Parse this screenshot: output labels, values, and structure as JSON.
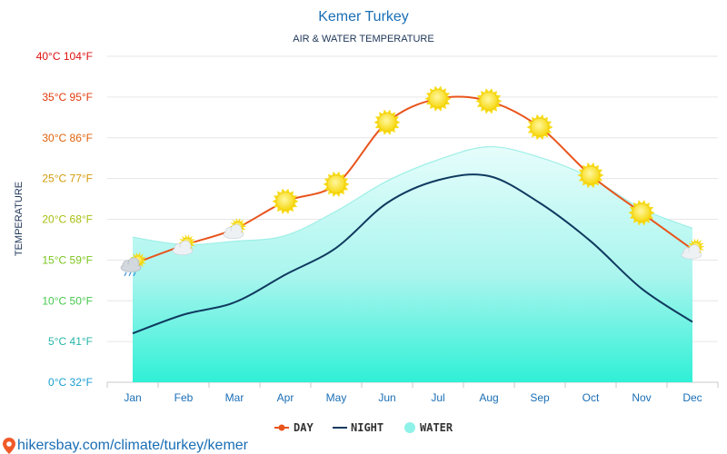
{
  "chart_data": {
    "type": "line",
    "title": "Kemer Turkey",
    "subtitle": "AIR & WATER TEMPERATURE",
    "ylabel": "TEMPERATURE",
    "xlabel": "",
    "categories": [
      "Jan",
      "Feb",
      "Mar",
      "Apr",
      "May",
      "Jun",
      "Jul",
      "Aug",
      "Sep",
      "Oct",
      "Nov",
      "Dec"
    ],
    "yticks": [
      {
        "c": 0,
        "label": "0°C 32°F",
        "color": "#1a9fd0"
      },
      {
        "c": 5,
        "label": "5°C 41°F",
        "color": "#25b6a8"
      },
      {
        "c": 10,
        "label": "10°C 50°F",
        "color": "#46c84c"
      },
      {
        "c": 15,
        "label": "15°C 59°F",
        "color": "#7cc51f"
      },
      {
        "c": 20,
        "label": "20°C 68°F",
        "color": "#a6bf10"
      },
      {
        "c": 25,
        "label": "25°C 77°F",
        "color": "#d39b0a"
      },
      {
        "c": 30,
        "label": "30°C 86°F",
        "color": "#e0620a"
      },
      {
        "c": 35,
        "label": "35°C 95°F",
        "color": "#e03a0a"
      },
      {
        "c": 40,
        "label": "40°C 104°F",
        "color": "#dd1010"
      }
    ],
    "ylim": [
      0,
      40
    ],
    "grid": true,
    "legend_position": "bottom",
    "series": [
      {
        "name": "DAY",
        "values": [
          14.5,
          16.8,
          18.8,
          22.2,
          24.3,
          31.9,
          34.8,
          34.5,
          31.3,
          25.4,
          20.8,
          16.3
        ],
        "color": "#e8541c"
      },
      {
        "name": "NIGHT",
        "values": [
          6.0,
          8.3,
          9.8,
          13.2,
          16.5,
          22.0,
          24.8,
          25.3,
          22.0,
          17.3,
          11.5,
          7.4
        ],
        "color": "#0f3a5f"
      },
      {
        "name": "WATER",
        "values": [
          17.8,
          16.9,
          17.3,
          18.0,
          21.0,
          24.7,
          27.3,
          28.9,
          27.6,
          25.1,
          21.3,
          18.9
        ],
        "color": "#8ef2e8"
      }
    ],
    "weather_icons": [
      "cloud-sun-rain-icon",
      "cloud-sun-icon",
      "cloud-sun-icon",
      "sun-icon",
      "sun-icon",
      "sun-icon",
      "sun-icon",
      "sun-icon",
      "sun-icon",
      "sun-icon",
      "sun-icon",
      "cloud-sun-icon"
    ]
  },
  "footer": {
    "text": "hikersbay.com/climate/turkey/kemer",
    "icon": "location-pin-icon"
  }
}
